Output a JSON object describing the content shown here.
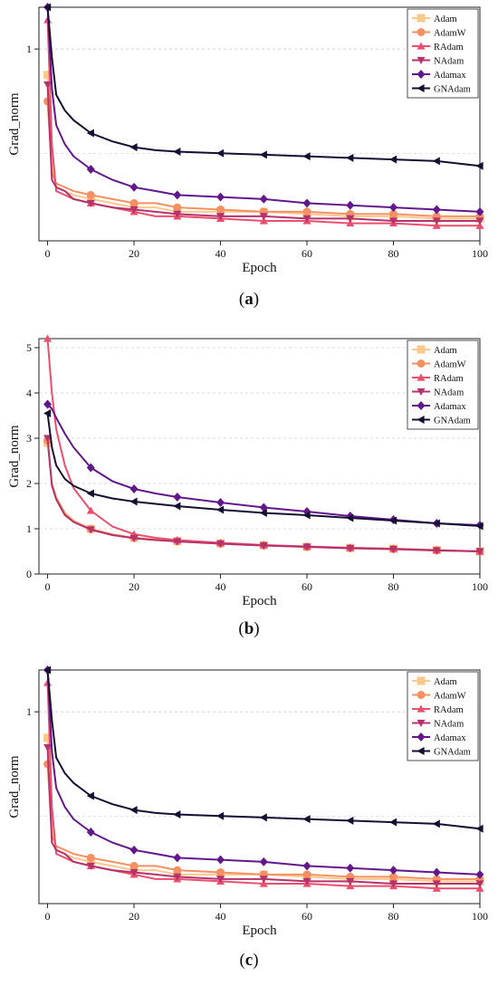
{
  "figure": {
    "colors": {
      "Adam": "#fbc98b",
      "AdamW": "#f59062",
      "RAdam": "#ec4f6e",
      "NAdam": "#b5326d",
      "Adamax": "#62188c",
      "GNAdam": "#160f33"
    },
    "panels": [
      {
        "label_open": "(",
        "label_letter": "a",
        "label_close": ")"
      },
      {
        "label_open": "(",
        "label_letter": "b",
        "label_close": ")"
      },
      {
        "label_open": "(",
        "label_letter": "c",
        "label_close": ")"
      }
    ]
  },
  "chart_data": [
    {
      "type": "line",
      "xlabel": "Epoch",
      "ylabel": "Grad_norm",
      "xlim": [
        -2,
        100
      ],
      "xticks": [
        0,
        20,
        40,
        60,
        80,
        100
      ],
      "ylim": [
        0.3,
        1.3
      ],
      "y_scale": "log",
      "yticks": [
        1
      ],
      "legend_position": "top-right",
      "grid": "horizontal dashed",
      "x": [
        0,
        1,
        2,
        4,
        6,
        10,
        15,
        20,
        25,
        30,
        40,
        50,
        60,
        70,
        80,
        90,
        100
      ],
      "series": [
        {
          "name": "Adam",
          "marker": "square",
          "values": [
            0.85,
            0.5,
            0.42,
            0.41,
            0.4,
            0.39,
            0.38,
            0.37,
            0.37,
            0.36,
            0.36,
            0.36,
            0.355,
            0.35,
            0.35,
            0.345,
            0.345
          ]
        },
        {
          "name": "AdamW",
          "marker": "circle",
          "values": [
            0.72,
            0.46,
            0.43,
            0.42,
            0.41,
            0.4,
            0.39,
            0.38,
            0.38,
            0.37,
            0.365,
            0.36,
            0.36,
            0.355,
            0.355,
            0.35,
            0.35
          ]
        },
        {
          "name": "RAdam",
          "marker": "triangle-up",
          "values": [
            1.2,
            0.55,
            0.41,
            0.4,
            0.39,
            0.38,
            0.37,
            0.36,
            0.35,
            0.35,
            0.345,
            0.34,
            0.34,
            0.335,
            0.335,
            0.33,
            0.33
          ]
        },
        {
          "name": "NAdam",
          "marker": "triangle-down",
          "values": [
            0.8,
            0.44,
            0.42,
            0.41,
            0.39,
            0.38,
            0.37,
            0.365,
            0.36,
            0.355,
            0.35,
            0.35,
            0.345,
            0.345,
            0.34,
            0.34,
            0.34
          ]
        },
        {
          "name": "Adamax",
          "marker": "diamond",
          "values": [
            1.3,
            0.78,
            0.62,
            0.55,
            0.51,
            0.47,
            0.44,
            0.42,
            0.41,
            0.4,
            0.395,
            0.39,
            0.38,
            0.375,
            0.37,
            0.365,
            0.36
          ]
        },
        {
          "name": "GNAdam",
          "marker": "triangle-left",
          "values": [
            1.3,
            0.95,
            0.75,
            0.68,
            0.64,
            0.59,
            0.56,
            0.54,
            0.53,
            0.525,
            0.52,
            0.515,
            0.51,
            0.505,
            0.5,
            0.495,
            0.48
          ]
        }
      ]
    },
    {
      "type": "line",
      "xlabel": "Epoch",
      "ylabel": "Grad_norm",
      "xlim": [
        -2,
        100
      ],
      "xticks": [
        0,
        20,
        40,
        60,
        80,
        100
      ],
      "ylim": [
        0,
        5.2
      ],
      "y_scale": "linear",
      "yticks": [
        0,
        1,
        2,
        3,
        4,
        5
      ],
      "legend_position": "top-right",
      "grid": "horizontal dashed",
      "x": [
        0,
        1,
        2,
        4,
        6,
        10,
        15,
        20,
        25,
        30,
        40,
        50,
        60,
        70,
        80,
        90,
        100
      ],
      "series": [
        {
          "name": "Adam",
          "marker": "square",
          "values": [
            2.9,
            2.0,
            1.7,
            1.35,
            1.18,
            1.0,
            0.88,
            0.8,
            0.76,
            0.73,
            0.68,
            0.64,
            0.6,
            0.58,
            0.56,
            0.53,
            0.5
          ]
        },
        {
          "name": "AdamW",
          "marker": "circle",
          "values": [
            2.95,
            2.0,
            1.68,
            1.34,
            1.17,
            0.99,
            0.87,
            0.8,
            0.76,
            0.72,
            0.67,
            0.63,
            0.6,
            0.57,
            0.55,
            0.52,
            0.5
          ]
        },
        {
          "name": "RAdam",
          "marker": "triangle-up",
          "values": [
            5.3,
            4.0,
            3.2,
            2.4,
            1.9,
            1.4,
            1.05,
            0.88,
            0.8,
            0.75,
            0.69,
            0.64,
            0.61,
            0.58,
            0.56,
            0.53,
            0.5
          ]
        },
        {
          "name": "NAdam",
          "marker": "triangle-down",
          "values": [
            3.0,
            1.95,
            1.65,
            1.3,
            1.15,
            0.98,
            0.86,
            0.79,
            0.75,
            0.72,
            0.67,
            0.63,
            0.6,
            0.57,
            0.55,
            0.52,
            0.5
          ]
        },
        {
          "name": "Adamax",
          "marker": "diamond",
          "values": [
            3.75,
            3.65,
            3.45,
            3.1,
            2.8,
            2.35,
            2.05,
            1.88,
            1.78,
            1.7,
            1.58,
            1.47,
            1.38,
            1.28,
            1.2,
            1.12,
            1.08
          ]
        },
        {
          "name": "GNAdam",
          "marker": "triangle-left",
          "values": [
            3.55,
            2.8,
            2.4,
            2.1,
            1.95,
            1.78,
            1.67,
            1.6,
            1.55,
            1.5,
            1.42,
            1.35,
            1.3,
            1.24,
            1.18,
            1.12,
            1.06
          ]
        }
      ]
    },
    {
      "type": "line",
      "xlabel": "Epoch",
      "ylabel": "Grad_norm",
      "xlim": [
        -2,
        100
      ],
      "xticks": [
        0,
        20,
        40,
        60,
        80,
        100
      ],
      "ylim": [
        0.3,
        1.3
      ],
      "y_scale": "log",
      "yticks": [
        1
      ],
      "legend_position": "top-right",
      "grid": "horizontal dashed",
      "x": [
        0,
        1,
        2,
        4,
        6,
        10,
        15,
        20,
        25,
        30,
        40,
        50,
        60,
        70,
        80,
        90,
        100
      ],
      "series": [
        {
          "name": "Adam",
          "marker": "square",
          "values": [
            0.85,
            0.5,
            0.42,
            0.41,
            0.4,
            0.39,
            0.38,
            0.37,
            0.37,
            0.36,
            0.36,
            0.36,
            0.355,
            0.35,
            0.35,
            0.345,
            0.345
          ]
        },
        {
          "name": "AdamW",
          "marker": "circle",
          "values": [
            0.72,
            0.46,
            0.43,
            0.42,
            0.41,
            0.4,
            0.39,
            0.38,
            0.38,
            0.37,
            0.365,
            0.36,
            0.36,
            0.355,
            0.355,
            0.35,
            0.35
          ]
        },
        {
          "name": "RAdam",
          "marker": "triangle-up",
          "values": [
            1.2,
            0.55,
            0.41,
            0.4,
            0.39,
            0.38,
            0.37,
            0.36,
            0.35,
            0.35,
            0.345,
            0.34,
            0.34,
            0.335,
            0.335,
            0.33,
            0.33
          ]
        },
        {
          "name": "NAdam",
          "marker": "triangle-down",
          "values": [
            0.8,
            0.44,
            0.42,
            0.41,
            0.39,
            0.38,
            0.37,
            0.365,
            0.36,
            0.355,
            0.35,
            0.35,
            0.345,
            0.345,
            0.34,
            0.34,
            0.34
          ]
        },
        {
          "name": "Adamax",
          "marker": "diamond",
          "values": [
            1.3,
            0.78,
            0.62,
            0.55,
            0.51,
            0.47,
            0.44,
            0.42,
            0.41,
            0.4,
            0.395,
            0.39,
            0.38,
            0.375,
            0.37,
            0.365,
            0.36
          ]
        },
        {
          "name": "GNAdam",
          "marker": "triangle-left",
          "values": [
            1.3,
            0.95,
            0.75,
            0.68,
            0.64,
            0.59,
            0.56,
            0.54,
            0.53,
            0.525,
            0.52,
            0.515,
            0.51,
            0.505,
            0.5,
            0.495,
            0.48
          ]
        }
      ]
    }
  ]
}
